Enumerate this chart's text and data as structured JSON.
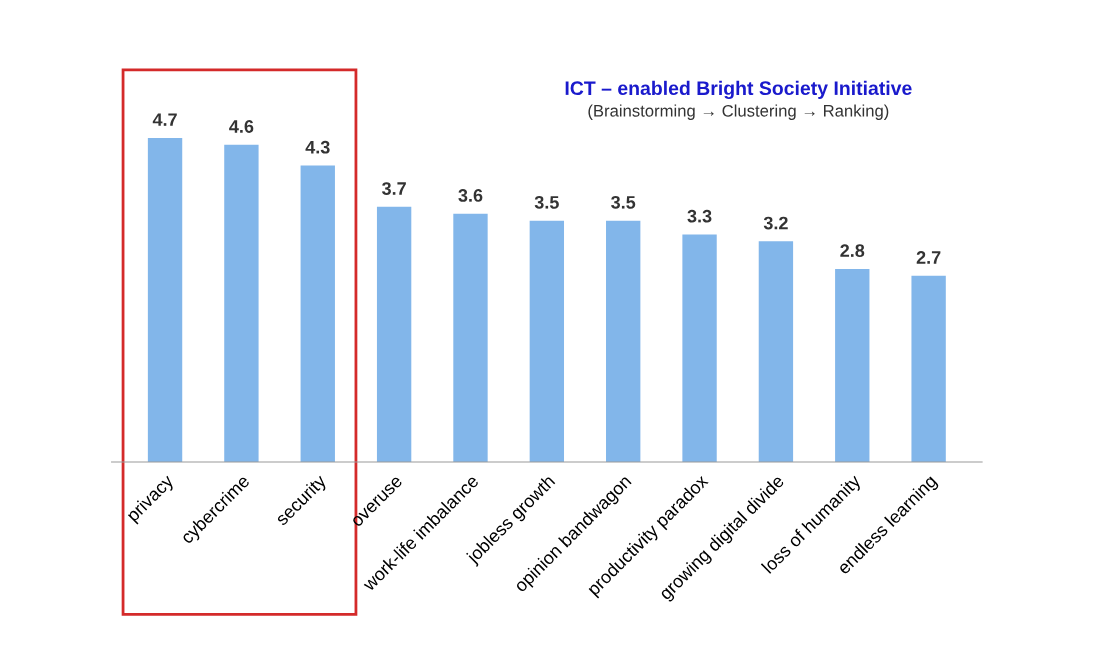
{
  "chart_data": {
    "type": "bar",
    "title": "ICT – enabled Bright Society Initiative",
    "subtitle": "(Brainstorming → Clustering → Ranking)",
    "categories": [
      "privacy",
      "cybercrime",
      "security",
      "overuse",
      "work-life imbalance",
      "jobless growth",
      "opinion bandwagon",
      "productivity paradox",
      "growing digital divide",
      "loss of humanity",
      "endless learning"
    ],
    "values": [
      4.7,
      4.6,
      4.3,
      3.7,
      3.6,
      3.5,
      3.5,
      3.3,
      3.2,
      2.8,
      2.7
    ],
    "color": "#82b6ea",
    "data_labels": true,
    "grid": false,
    "legend": false
  }
}
